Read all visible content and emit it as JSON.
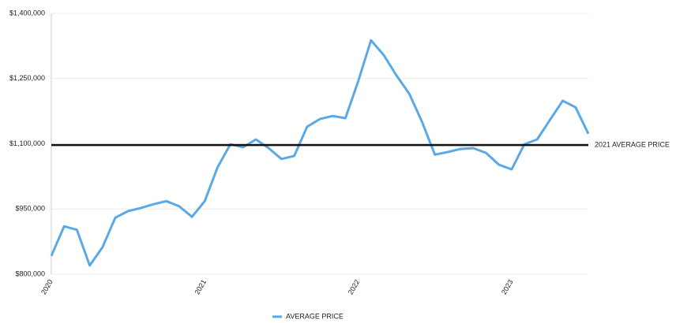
{
  "chart_data": {
    "type": "line",
    "categories": [
      "2020",
      null,
      null,
      null,
      null,
      null,
      null,
      null,
      null,
      null,
      null,
      null,
      "2021",
      null,
      null,
      null,
      null,
      null,
      null,
      null,
      null,
      null,
      null,
      null,
      "2022",
      null,
      null,
      null,
      null,
      null,
      null,
      null,
      null,
      null,
      null,
      null,
      "2023",
      null,
      null,
      null,
      null,
      null,
      null
    ],
    "series": [
      {
        "name": "AVERAGE PRICE",
        "color": "#5aa9e6",
        "values": [
          842000,
          910000,
          902000,
          820000,
          862000,
          930000,
          945000,
          952000,
          961000,
          968000,
          956000,
          932000,
          968000,
          1046000,
          1099000,
          1092000,
          1110000,
          1090000,
          1065000,
          1072000,
          1139000,
          1157000,
          1164000,
          1159000,
          1244000,
          1338000,
          1304000,
          1257000,
          1215000,
          1150000,
          1075000,
          1081000,
          1088000,
          1090000,
          1079000,
          1052000,
          1041000,
          1099000,
          1110000,
          1155000,
          1199000,
          1184000,
          1123000
        ]
      }
    ],
    "ylim": [
      800000,
      1400000
    ],
    "yticks": [
      {
        "value": 800000,
        "label": "$800,000"
      },
      {
        "value": 950000,
        "label": "$950,000"
      },
      {
        "value": 1100000,
        "label": "$1,100,000"
      },
      {
        "value": 1250000,
        "label": "$1,250,000"
      },
      {
        "value": 1400000,
        "label": "$1,400,000"
      }
    ],
    "grid": true,
    "reference_line": {
      "value": 1097000,
      "label": "2021 AVERAGE PRICE",
      "color": "#111111"
    },
    "legend": "bottom"
  }
}
